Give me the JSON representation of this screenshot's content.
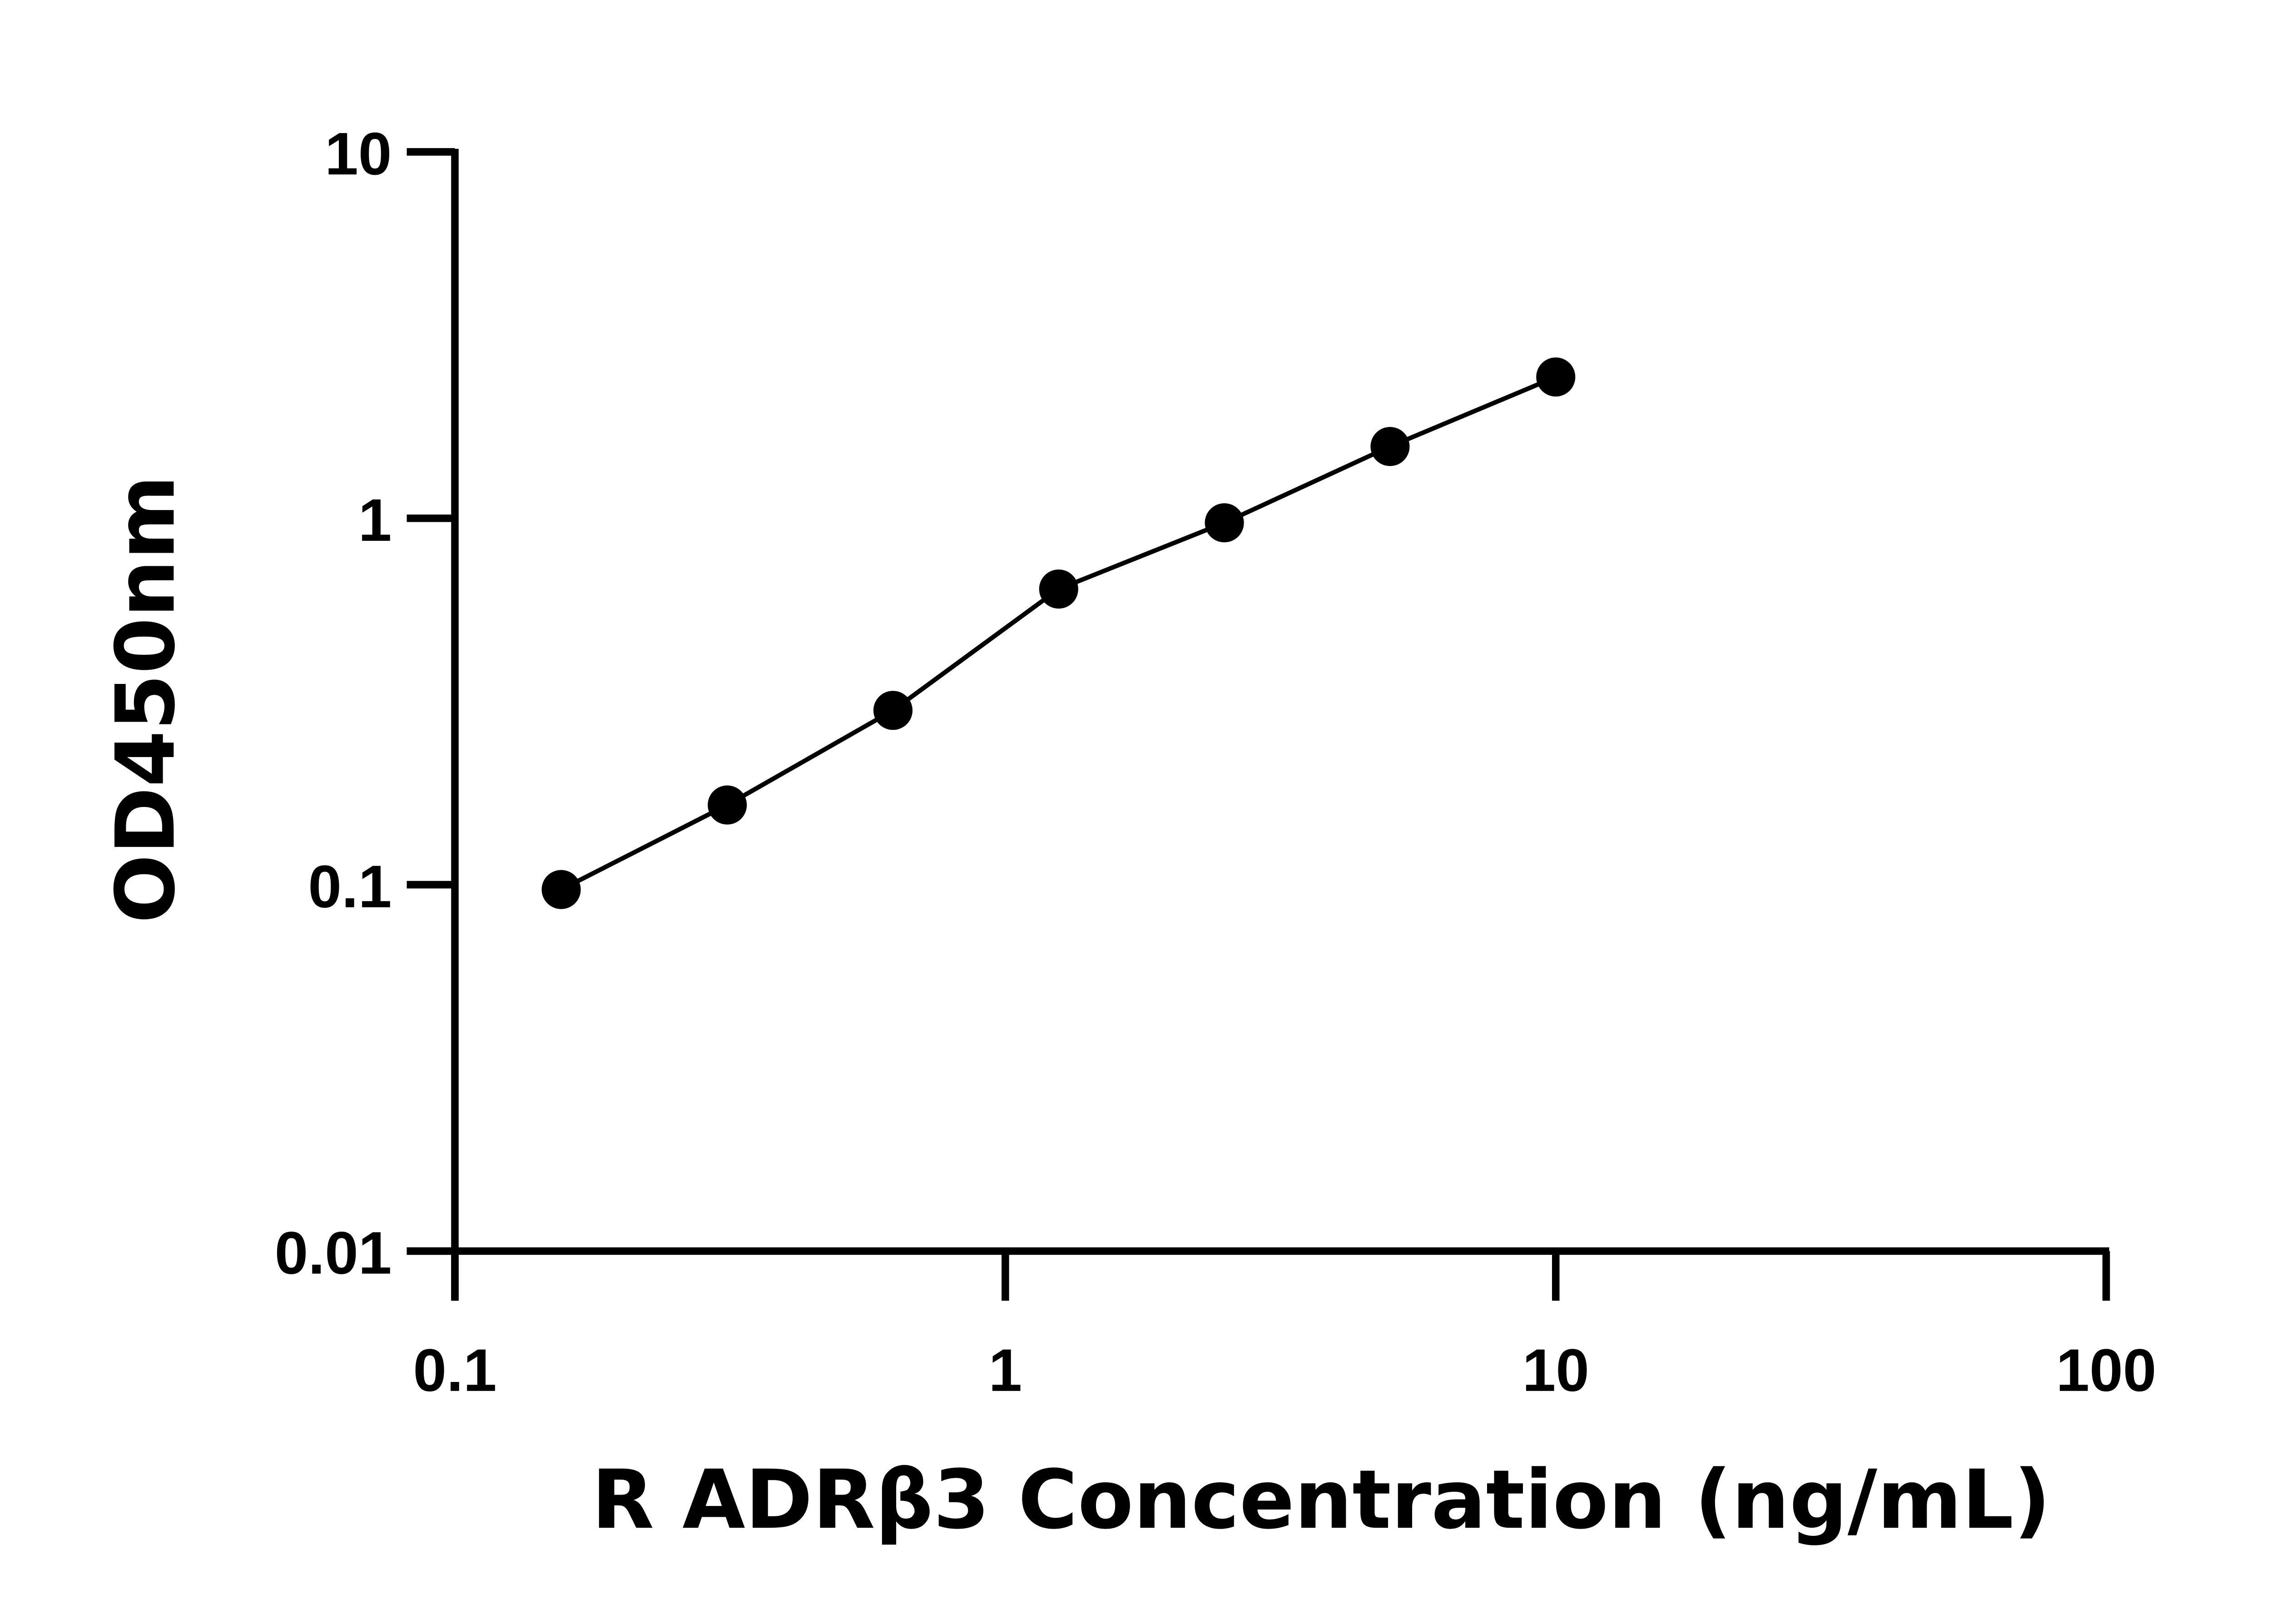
{
  "chart_data": {
    "type": "scatter",
    "title": "",
    "xlabel": "R ADRβ3 Concentration (ng/mL)",
    "ylabel": "OD450nm",
    "xscale": "log",
    "yscale": "log",
    "xlim": [
      0.1,
      100
    ],
    "ylim": [
      0.01,
      10
    ],
    "xticks": [
      "0.1",
      "1",
      "10",
      "100"
    ],
    "yticks": [
      "0.01",
      "0.1",
      "1",
      "10"
    ],
    "grid": false,
    "fit_line": true,
    "marker_color": "#000000",
    "series": [
      {
        "x": [
          0.156,
          0.3125,
          0.625,
          1.25,
          2.5,
          5,
          10
        ],
        "y": [
          0.097,
          0.165,
          0.299,
          0.641,
          0.972,
          1.57,
          2.43
        ]
      }
    ]
  }
}
